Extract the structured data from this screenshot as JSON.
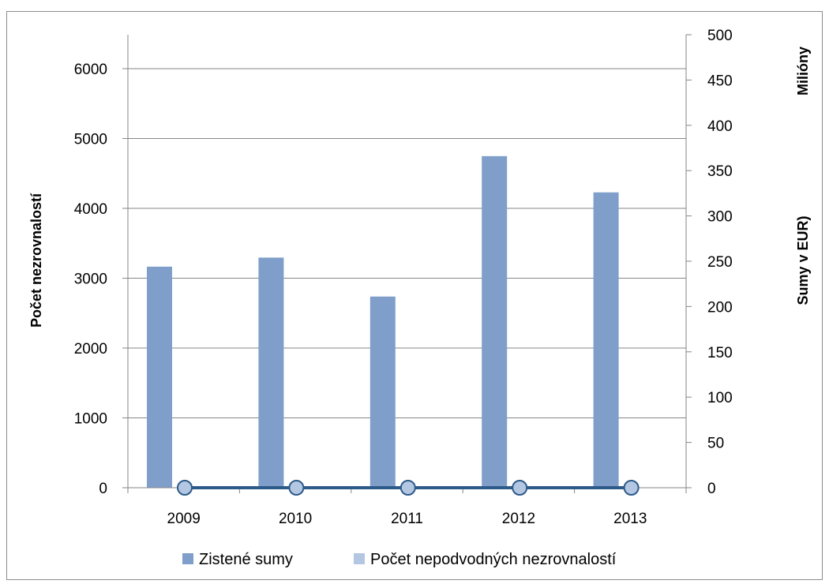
{
  "chart_data": {
    "type": "bar",
    "categories": [
      "2009",
      "2010",
      "2011",
      "2012",
      "2013"
    ],
    "series": [
      {
        "name": "Zistené sumy",
        "axis": "right",
        "type": "bar",
        "values": [
          244,
          254,
          211,
          366,
          326
        ],
        "color": "#7f9fca"
      },
      {
        "name": "Počet nepodvodných nezrovnalostí",
        "axis": "left",
        "type": "line",
        "values": [
          0,
          0,
          0,
          0,
          0
        ],
        "color": "#b4c7e2",
        "line_color": "#2e5a8a"
      }
    ],
    "ylabel": "Počet nezrovnalostí",
    "ylabel_right": "Sumy v EUR)",
    "ylabel_right_unit": "Milióny",
    "ylim": [
      0,
      6000
    ],
    "yticks": [
      "0",
      "1000",
      "2000",
      "3000",
      "4000",
      "5000",
      "6000"
    ],
    "ylim_right": [
      0,
      500
    ],
    "yticks_right": [
      "0",
      "50",
      "100",
      "150",
      "200",
      "250",
      "300",
      "350",
      "400",
      "450",
      "500"
    ],
    "grid": true,
    "legend_position": "bottom"
  }
}
